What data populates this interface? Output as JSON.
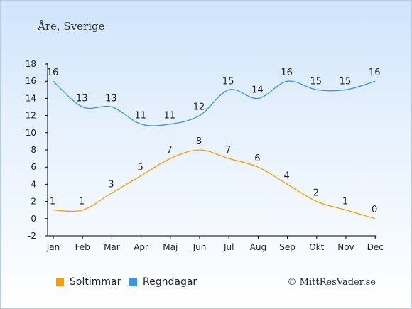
{
  "chart_data": {
    "type": "line",
    "title": "Åre, Sverige",
    "categories": [
      "Jan",
      "Feb",
      "Mar",
      "Apr",
      "Maj",
      "Jun",
      "Jul",
      "Aug",
      "Sep",
      "Okt",
      "Nov",
      "Dec"
    ],
    "ylim": [
      -2,
      18
    ],
    "yticks": [
      -2,
      0,
      2,
      4,
      6,
      8,
      10,
      12,
      14,
      16,
      18
    ],
    "grid": false,
    "legend_position": "bottom-left",
    "series": [
      {
        "name": "Soltimmar",
        "color": "#f5a000",
        "values": [
          1,
          1,
          3,
          5,
          7,
          8,
          7,
          6,
          4,
          2,
          1,
          0
        ]
      },
      {
        "name": "Regndagar",
        "color": "#3b94e6",
        "values": [
          16,
          13,
          13,
          11,
          11,
          12,
          15,
          14,
          16,
          15,
          15,
          16
        ]
      }
    ]
  },
  "credit": "© MittResVader.se"
}
